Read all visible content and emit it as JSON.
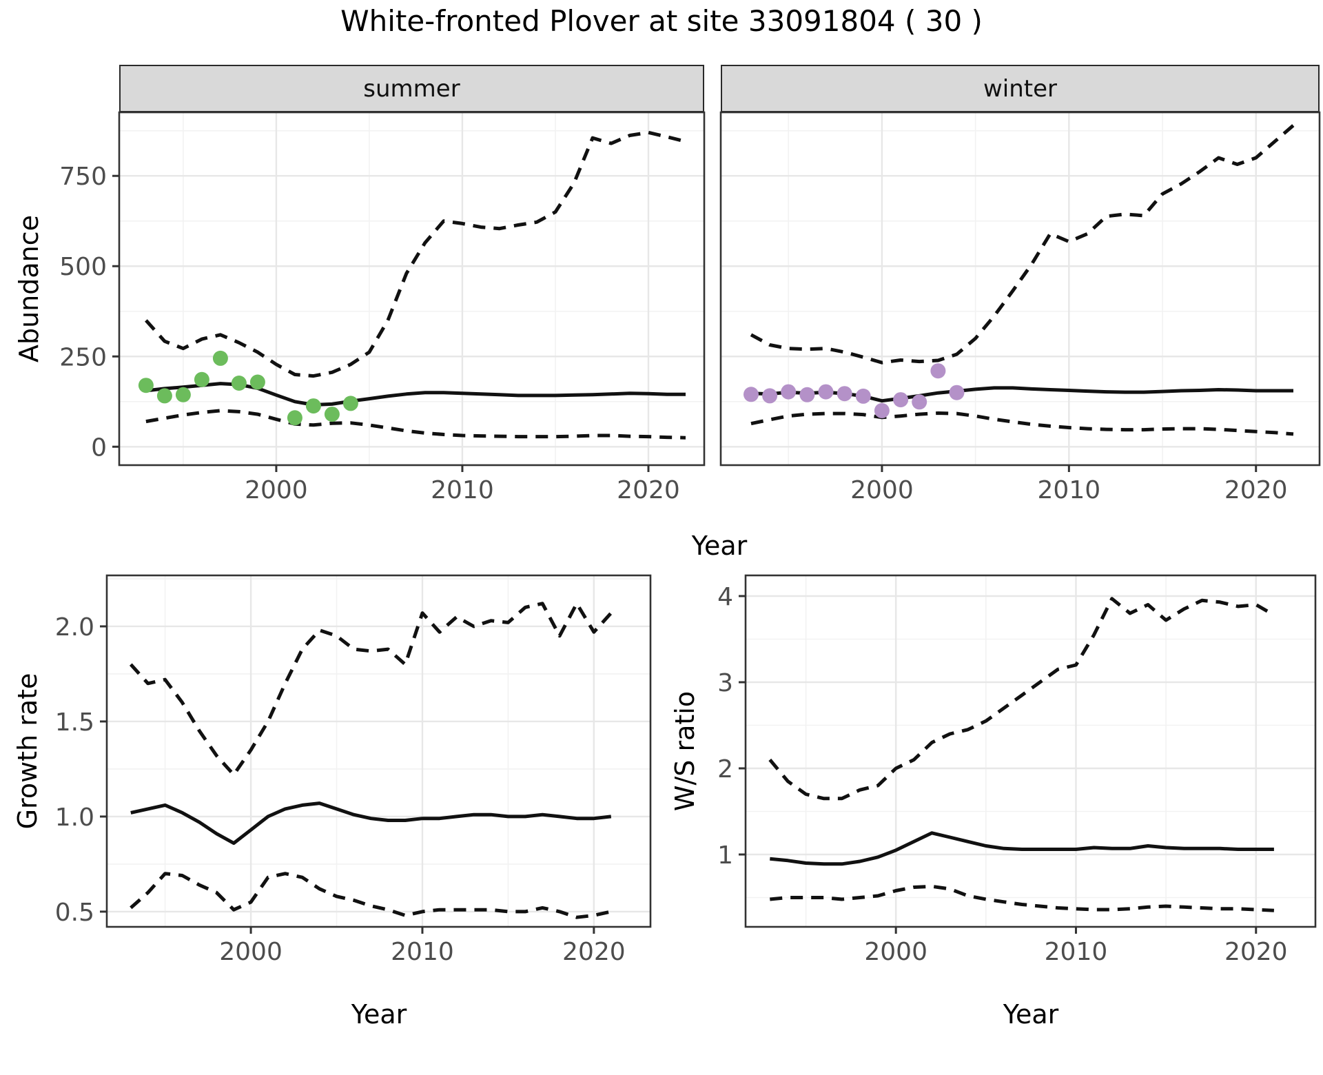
{
  "title": "White-fronted Plover at site 33091804 ( 30 )",
  "facets": [
    "summer",
    "winter"
  ],
  "shared_x_label": "Year",
  "colors": {
    "summer_points": "#6CBC5C",
    "winter_points": "#B491C8",
    "line": "#111111",
    "strip_bg": "#D9D9D9",
    "grid_major": "#E7E7E7",
    "grid_minor": "#F2F2F2",
    "tick_text": "#4D4D4D",
    "panel_border": "#333333"
  },
  "chart_data": [
    {
      "id": "abundance-summer",
      "type": "line",
      "facet": "summer",
      "xlabel": "Year",
      "ylabel": "Abundance",
      "x": [
        1993,
        1994,
        1995,
        1996,
        1997,
        1998,
        1999,
        2000,
        2001,
        2002,
        2003,
        2004,
        2005,
        2006,
        2007,
        2008,
        2009,
        2010,
        2011,
        2012,
        2013,
        2014,
        2015,
        2016,
        2017,
        2018,
        2019,
        2020,
        2021,
        2022
      ],
      "series": [
        {
          "name": "median",
          "style": "solid",
          "values": [
            155,
            161,
            165,
            170,
            175,
            172,
            162,
            143,
            125,
            116,
            118,
            126,
            133,
            140,
            146,
            150,
            150,
            148,
            146,
            144,
            142,
            142,
            142,
            143,
            144,
            146,
            148,
            147,
            145,
            145
          ]
        },
        {
          "name": "upper CI",
          "style": "dashed",
          "values": [
            350,
            292,
            272,
            298,
            310,
            288,
            262,
            228,
            200,
            196,
            206,
            228,
            262,
            350,
            480,
            565,
            625,
            618,
            608,
            604,
            614,
            622,
            650,
            730,
            855,
            840,
            862,
            870,
            858,
            845
          ]
        },
        {
          "name": "lower CI",
          "style": "dashed",
          "values": [
            70,
            79,
            88,
            95,
            100,
            97,
            90,
            76,
            63,
            60,
            65,
            66,
            60,
            52,
            44,
            38,
            34,
            31,
            30,
            29,
            28,
            28,
            28,
            29,
            31,
            31,
            29,
            28,
            26,
            25
          ]
        }
      ],
      "points": {
        "name": "observed counts",
        "color": "#6CBC5C",
        "x": [
          1993,
          1994,
          1995,
          1996,
          1997,
          1998,
          1999,
          2001,
          2002,
          2003,
          2004
        ],
        "y": [
          170,
          141,
          144,
          186,
          245,
          176,
          179,
          80,
          113,
          90,
          120
        ]
      },
      "xlim": [
        1991.56,
        2023.0
      ],
      "ylim": [
        -51,
        926
      ],
      "xticks": [
        2000,
        2010,
        2020
      ],
      "xtick_labels": [
        "2000",
        "2010",
        "2020"
      ],
      "yticks": [
        0,
        250,
        500,
        750
      ],
      "ytick_labels": [
        "0",
        "250",
        "500",
        "750"
      ],
      "xticks_minor": [
        1995,
        2005,
        2015
      ],
      "yticks_minor": [
        125,
        375,
        625,
        875
      ],
      "grid": true,
      "legend": "none"
    },
    {
      "id": "abundance-winter",
      "type": "line",
      "facet": "winter",
      "xlabel": "Year",
      "ylabel": "Abundance",
      "x": [
        1993,
        1994,
        1995,
        1996,
        1997,
        1998,
        1999,
        2000,
        2001,
        2002,
        2003,
        2004,
        2005,
        2006,
        2007,
        2008,
        2009,
        2010,
        2011,
        2012,
        2013,
        2014,
        2015,
        2016,
        2017,
        2018,
        2019,
        2020,
        2021,
        2022
      ],
      "series": [
        {
          "name": "median",
          "style": "solid",
          "values": [
            148,
            146,
            151,
            148,
            151,
            147,
            140,
            127,
            134,
            141,
            149,
            154,
            159,
            163,
            163,
            160,
            158,
            156,
            154,
            152,
            151,
            151,
            153,
            155,
            156,
            158,
            157,
            155,
            155,
            155
          ]
        },
        {
          "name": "upper CI",
          "style": "dashed",
          "values": [
            310,
            282,
            272,
            270,
            272,
            262,
            248,
            233,
            240,
            236,
            239,
            256,
            300,
            362,
            432,
            505,
            590,
            568,
            590,
            638,
            644,
            640,
            700,
            728,
            762,
            800,
            782,
            800,
            845,
            890
          ]
        },
        {
          "name": "lower CI",
          "style": "dashed",
          "values": [
            64,
            75,
            85,
            90,
            92,
            92,
            89,
            81,
            85,
            90,
            93,
            92,
            85,
            76,
            69,
            62,
            57,
            53,
            50,
            48,
            47,
            47,
            49,
            50,
            50,
            48,
            45,
            42,
            39,
            35
          ]
        }
      ],
      "points": {
        "name": "observed counts",
        "color": "#B491C8",
        "x": [
          1993,
          1994,
          1995,
          1996,
          1997,
          1998,
          1999,
          2000,
          2001,
          2002,
          2003,
          2004
        ],
        "y": [
          145,
          141,
          152,
          144,
          152,
          147,
          140,
          100,
          130,
          124,
          210,
          150
        ]
      },
      "xlim": [
        1991.38,
        2023.4
      ],
      "ylim": [
        -51,
        926
      ],
      "xticks": [
        2000,
        2010,
        2020
      ],
      "xtick_labels": [
        "2000",
        "2010",
        "2020"
      ],
      "yticks": [
        0,
        250,
        500,
        750
      ],
      "ytick_labels": [
        "0",
        "250",
        "500",
        "750"
      ],
      "xticks_minor": [
        1995,
        2005,
        2015
      ],
      "yticks_minor": [
        125,
        375,
        625,
        875
      ],
      "grid": true,
      "legend": "none"
    },
    {
      "id": "growth-rate",
      "type": "line",
      "facet": "",
      "xlabel": "Year",
      "ylabel": "Growth rate",
      "x": [
        1993,
        1994,
        1995,
        1996,
        1997,
        1998,
        1999,
        2000,
        2001,
        2002,
        2003,
        2004,
        2005,
        2006,
        2007,
        2008,
        2009,
        2010,
        2011,
        2012,
        2013,
        2014,
        2015,
        2016,
        2017,
        2018,
        2019,
        2020,
        2021
      ],
      "series": [
        {
          "name": "median",
          "style": "solid",
          "values": [
            1.02,
            1.04,
            1.06,
            1.02,
            0.97,
            0.91,
            0.86,
            0.93,
            1.0,
            1.04,
            1.06,
            1.07,
            1.04,
            1.01,
            0.99,
            0.98,
            0.98,
            0.99,
            0.99,
            1.0,
            1.01,
            1.01,
            1.0,
            1.0,
            1.01,
            1.0,
            0.99,
            0.99,
            1.0
          ]
        },
        {
          "name": "upper CI",
          "style": "dashed",
          "values": [
            1.8,
            1.7,
            1.72,
            1.6,
            1.45,
            1.32,
            1.22,
            1.35,
            1.5,
            1.7,
            1.88,
            1.98,
            1.95,
            1.88,
            1.87,
            1.88,
            1.8,
            2.07,
            1.97,
            2.05,
            2.0,
            2.03,
            2.02,
            2.1,
            2.12,
            1.95,
            2.12,
            1.97,
            2.07
          ]
        },
        {
          "name": "lower CI",
          "style": "dashed",
          "values": [
            0.52,
            0.6,
            0.7,
            0.69,
            0.64,
            0.6,
            0.51,
            0.55,
            0.68,
            0.7,
            0.68,
            0.62,
            0.58,
            0.56,
            0.53,
            0.51,
            0.48,
            0.5,
            0.51,
            0.51,
            0.51,
            0.51,
            0.5,
            0.5,
            0.52,
            0.5,
            0.47,
            0.48,
            0.5
          ]
        }
      ],
      "points": null,
      "xlim": [
        1991.6,
        2023.3
      ],
      "ylim": [
        0.42,
        2.268
      ],
      "xticks": [
        2000,
        2010,
        2020
      ],
      "xtick_labels": [
        "2000",
        "2010",
        "2020"
      ],
      "yticks": [
        0.5,
        1.0,
        1.5,
        2.0
      ],
      "ytick_labels": [
        "0.5",
        "1.0",
        "1.5",
        "2.0"
      ],
      "xticks_minor": [
        1995,
        2005,
        2015
      ],
      "yticks_minor": [
        0.75,
        1.25,
        1.75,
        2.25
      ],
      "grid": true,
      "legend": "none"
    },
    {
      "id": "ws-ratio",
      "type": "line",
      "facet": "",
      "xlabel": "Year",
      "ylabel": "W/S ratio",
      "x": [
        1993,
        1994,
        1995,
        1996,
        1997,
        1998,
        1999,
        2000,
        2001,
        2002,
        2003,
        2004,
        2005,
        2006,
        2007,
        2008,
        2009,
        2010,
        2011,
        2012,
        2013,
        2014,
        2015,
        2016,
        2017,
        2018,
        2019,
        2020,
        2021
      ],
      "series": [
        {
          "name": "median",
          "style": "solid",
          "values": [
            0.95,
            0.93,
            0.9,
            0.89,
            0.89,
            0.92,
            0.97,
            1.05,
            1.15,
            1.25,
            1.2,
            1.15,
            1.1,
            1.07,
            1.06,
            1.06,
            1.06,
            1.06,
            1.08,
            1.07,
            1.07,
            1.1,
            1.08,
            1.07,
            1.07,
            1.07,
            1.06,
            1.06,
            1.06
          ]
        },
        {
          "name": "upper CI",
          "style": "dashed",
          "values": [
            2.1,
            1.85,
            1.7,
            1.65,
            1.65,
            1.75,
            1.8,
            2.0,
            2.1,
            2.3,
            2.4,
            2.45,
            2.55,
            2.7,
            2.85,
            3.0,
            3.15,
            3.2,
            3.55,
            3.97,
            3.8,
            3.9,
            3.72,
            3.85,
            3.95,
            3.93,
            3.88,
            3.9,
            3.78
          ]
        },
        {
          "name": "lower CI",
          "style": "dashed",
          "values": [
            0.48,
            0.5,
            0.5,
            0.5,
            0.48,
            0.5,
            0.52,
            0.58,
            0.62,
            0.63,
            0.6,
            0.52,
            0.48,
            0.45,
            0.42,
            0.4,
            0.38,
            0.37,
            0.36,
            0.36,
            0.37,
            0.39,
            0.4,
            0.39,
            0.38,
            0.37,
            0.37,
            0.36,
            0.35
          ]
        }
      ],
      "points": null,
      "xlim": [
        1991.65,
        2023.3
      ],
      "ylim": [
        0.16,
        4.24
      ],
      "xticks": [
        2000,
        2010,
        2020
      ],
      "xtick_labels": [
        "2000",
        "2010",
        "2020"
      ],
      "yticks": [
        1,
        2,
        3,
        4
      ],
      "ytick_labels": [
        "1",
        "2",
        "3",
        "4"
      ],
      "xticks_minor": [
        1995,
        2005,
        2015
      ],
      "yticks_minor": [
        0.5,
        1.5,
        2.5,
        3.5
      ],
      "grid": true,
      "legend": "none"
    }
  ]
}
